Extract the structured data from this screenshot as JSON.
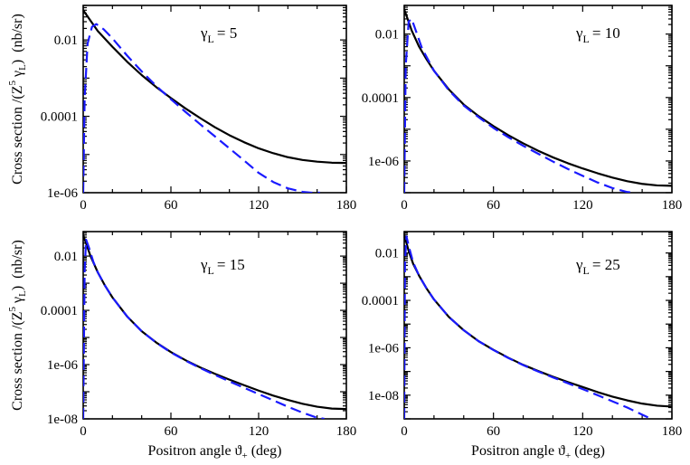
{
  "chart_data": [
    {
      "type": "line",
      "annotation": "γ_L = 5",
      "gamma_symbol": "γ",
      "gamma_sub": "L",
      "gamma_value": "= 5",
      "xlim": [
        0,
        180
      ],
      "ylim": [
        1e-06,
        0.08
      ],
      "yscale": "log",
      "xticks": [
        "0",
        "60",
        "120",
        "180"
      ],
      "yticks": [
        {
          "label": "0.01",
          "value": 0.01
        },
        {
          "label": "0.0001",
          "value": 0.0001
        },
        {
          "label": "1e-06",
          "value": 1e-06
        }
      ],
      "show_xlabel": false,
      "show_ylabel": true,
      "series": [
        {
          "style": "solid",
          "color": "#000000",
          "x": [
            0,
            10,
            20,
            30,
            40,
            50,
            60,
            70,
            80,
            90,
            100,
            110,
            120,
            130,
            140,
            150,
            160,
            170,
            180
          ],
          "y": [
            0.06,
            0.017,
            0.0066,
            0.0027,
            0.0012,
            0.00058,
            0.0003,
            0.00016,
            9e-05,
            5.2e-05,
            3.2e-05,
            2.1e-05,
            1.45e-05,
            1.08e-05,
            8.5e-06,
            7.2e-06,
            6.5e-06,
            6.1e-06,
            6e-06
          ]
        },
        {
          "style": "dashed",
          "color": "#1a1aff",
          "x": [
            0,
            1,
            3,
            6,
            9,
            14,
            20,
            30,
            40,
            50,
            60,
            70,
            80,
            90,
            100,
            110,
            120,
            130,
            140,
            150,
            156,
            162
          ],
          "y": [
            1e-06,
            0.0003,
            0.008,
            0.022,
            0.026,
            0.019,
            0.011,
            0.0039,
            0.0015,
            0.00062,
            0.00028,
            0.00013,
            6.2e-05,
            3e-05,
            1.45e-05,
            7e-06,
            3.3e-06,
            1.9e-06,
            1.3e-06,
            1.05e-06,
            1e-06,
            1e-06
          ]
        }
      ]
    },
    {
      "type": "line",
      "annotation": "γ_L = 10",
      "gamma_symbol": "γ",
      "gamma_sub": "L",
      "gamma_value": "= 10",
      "xlim": [
        0,
        180
      ],
      "ylim": [
        1e-07,
        0.08
      ],
      "yscale": "log",
      "xticks": [
        "0",
        "60",
        "120",
        "180"
      ],
      "yticks": [
        {
          "label": "0.01",
          "value": 0.01
        },
        {
          "label": "0.0001",
          "value": 0.0001
        },
        {
          "label": "1e-06",
          "value": 1e-06
        }
      ],
      "show_xlabel": false,
      "show_ylabel": false,
      "series": [
        {
          "style": "solid",
          "color": "#000000",
          "x": [
            0,
            5,
            10,
            15,
            20,
            30,
            40,
            50,
            60,
            70,
            80,
            90,
            100,
            110,
            120,
            130,
            140,
            150,
            160,
            170,
            180
          ],
          "y": [
            0.06,
            0.013,
            0.004,
            0.0016,
            0.0007,
            0.00018,
            6e-05,
            2.6e-05,
            1.25e-05,
            6.5e-06,
            3.6e-06,
            2.1e-06,
            1.3e-06,
            8.5e-07,
            5.8e-07,
            4.1e-07,
            3e-07,
            2.3e-07,
            1.9e-07,
            1.7e-07,
            1.65e-07
          ]
        },
        {
          "style": "dashed",
          "color": "#1a1aff",
          "x": [
            0,
            1,
            3,
            5,
            8,
            12,
            20,
            30,
            40,
            50,
            60,
            70,
            80,
            90,
            100,
            110,
            120,
            130,
            140,
            150,
            155
          ],
          "y": [
            1e-07,
            0.001,
            0.025,
            0.03,
            0.012,
            0.0035,
            0.0007,
            0.00017,
            5.6e-05,
            2.4e-05,
            1.1e-05,
            5.6e-06,
            3e-06,
            1.7e-06,
            9.6e-07,
            5.6e-07,
            3.4e-07,
            2.1e-07,
            1.4e-07,
            1.05e-07,
            1e-07
          ]
        }
      ]
    },
    {
      "type": "line",
      "annotation": "γ_L = 15",
      "gamma_symbol": "γ",
      "gamma_sub": "L",
      "gamma_value": "= 15",
      "xlim": [
        0,
        180
      ],
      "ylim": [
        1e-08,
        0.08
      ],
      "yscale": "log",
      "xticks": [
        "0",
        "60",
        "120",
        "180"
      ],
      "yticks": [
        {
          "label": "0.01",
          "value": 0.01
        },
        {
          "label": "0.0001",
          "value": 0.0001
        },
        {
          "label": "1e-06",
          "value": 1e-06
        },
        {
          "label": "1e-08",
          "value": 1e-08
        }
      ],
      "show_xlabel": true,
      "show_ylabel": true,
      "series": [
        {
          "style": "solid",
          "color": "#000000",
          "x": [
            0,
            5,
            10,
            15,
            20,
            30,
            40,
            50,
            60,
            70,
            80,
            90,
            100,
            110,
            120,
            130,
            140,
            150,
            160,
            170,
            180
          ],
          "y": [
            0.06,
            0.01,
            0.0025,
            0.0008,
            0.0003,
            6e-05,
            1.7e-05,
            6.5e-06,
            2.9e-06,
            1.45e-06,
            7.9e-07,
            4.6e-07,
            2.8e-07,
            1.75e-07,
            1.1e-07,
            7.2e-08,
            5e-08,
            3.6e-08,
            2.8e-08,
            2.4e-08,
            2.3e-08
          ]
        },
        {
          "style": "dashed",
          "color": "#1a1aff",
          "x": [
            0,
            1,
            2,
            4,
            7,
            10,
            15,
            20,
            30,
            40,
            50,
            60,
            70,
            80,
            90,
            100,
            110,
            120,
            130,
            140,
            150,
            160,
            165
          ],
          "y": [
            1e-08,
            0.003,
            0.04,
            0.02,
            0.006,
            0.0025,
            0.0008,
            0.0003,
            6e-05,
            1.7e-05,
            6.4e-06,
            2.8e-06,
            1.4e-06,
            7.5e-07,
            4.2e-07,
            2.4e-07,
            1.4e-07,
            8.2e-08,
            4.8e-08,
            2.8e-08,
            1.7e-08,
            1.1e-08,
            1e-08
          ]
        }
      ]
    },
    {
      "type": "line",
      "annotation": "γ_L = 25",
      "gamma_symbol": "γ",
      "gamma_sub": "L",
      "gamma_value": "= 25",
      "xlim": [
        0,
        180
      ],
      "ylim": [
        1e-09,
        0.08
      ],
      "yscale": "log",
      "xticks": [
        "0",
        "60",
        "120",
        "180"
      ],
      "yticks": [
        {
          "label": "0.01",
          "value": 0.01
        },
        {
          "label": "0.0001",
          "value": 0.0001
        },
        {
          "label": "1e-06",
          "value": 1e-06
        },
        {
          "label": "1e-08",
          "value": 1e-08
        }
      ],
      "show_xlabel": true,
      "show_ylabel": false,
      "series": [
        {
          "style": "solid",
          "color": "#000000",
          "x": [
            0,
            3,
            6,
            10,
            15,
            20,
            30,
            40,
            50,
            60,
            70,
            80,
            90,
            100,
            110,
            120,
            130,
            140,
            150,
            160,
            170,
            180
          ],
          "y": [
            0.06,
            0.012,
            0.0035,
            0.0011,
            0.00032,
            0.00011,
            2e-05,
            5.5e-06,
            1.9e-06,
            8.2e-07,
            3.8e-07,
            1.9e-07,
            1.05e-07,
            6e-08,
            3.6e-08,
            2.2e-08,
            1.35e-08,
            8.7e-09,
            6e-09,
            4.4e-09,
            3.6e-09,
            3.3e-09
          ]
        },
        {
          "style": "dashed",
          "color": "#1a1aff",
          "x": [
            0,
            0.5,
            1.5,
            3,
            6,
            10,
            15,
            20,
            30,
            40,
            50,
            60,
            70,
            80,
            90,
            100,
            110,
            120,
            130,
            140,
            150,
            160,
            166
          ],
          "y": [
            1e-09,
            0.004,
            0.05,
            0.02,
            0.004,
            0.0011,
            0.00032,
            0.00011,
            2e-05,
            5.5e-06,
            1.9e-06,
            8e-07,
            3.7e-07,
            1.85e-07,
            1e-07,
            5.6e-08,
            3.2e-08,
            1.8e-08,
            1e-08,
            5.5e-09,
            3e-09,
            1.5e-09,
            1e-09
          ]
        }
      ]
    }
  ],
  "ylabel": {
    "main": "Cross section /(Z",
    "sup": "5",
    "gamma": " γ",
    "sub": "L",
    "close": ")",
    "units": "(nb/sr)"
  },
  "xlabel": {
    "main": "Positron angle ϑ",
    "sub": "+",
    "units": " (deg)"
  }
}
